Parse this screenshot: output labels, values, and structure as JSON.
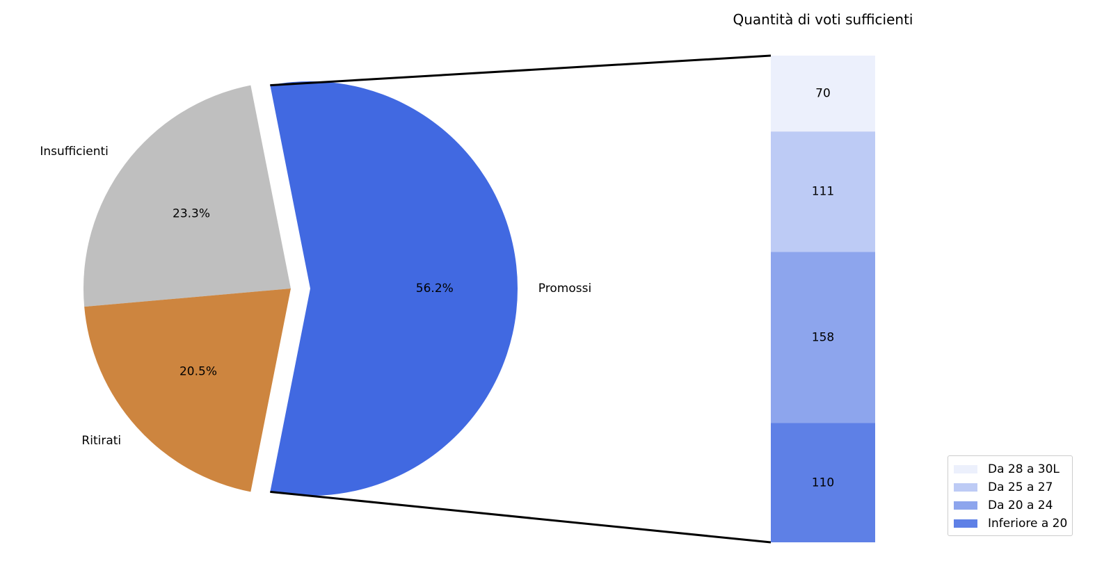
{
  "chart_data": [
    {
      "type": "pie",
      "slices": [
        {
          "label": "Promossi",
          "value": 56.2,
          "pct_label": "56.2%",
          "color": "#4169e1",
          "exploded": true
        },
        {
          "label": "Insufficienti",
          "value": 23.3,
          "pct_label": "23.3%",
          "color": "#bfbfbf",
          "exploded": false
        },
        {
          "label": "Ritirati",
          "value": 20.5,
          "pct_label": "20.5%",
          "color": "#cd853f",
          "exploded": false
        }
      ]
    },
    {
      "type": "bar",
      "stacked": true,
      "title": "Quantità di voti sufficienti",
      "series": [
        {
          "name": "Inferiore a 20",
          "value": 110,
          "label": "110",
          "color": "#4169e1",
          "alpha": 0.85
        },
        {
          "name": "Da 20 a 24",
          "value": 158,
          "label": "158",
          "color": "#4169e1",
          "alpha": 0.6
        },
        {
          "name": "Da 25 a 27",
          "value": 111,
          "label": "111",
          "color": "#4169e1",
          "alpha": 0.35
        },
        {
          "name": "Da 28 a 30L",
          "value": 70,
          "label": "70",
          "color": "#4169e1",
          "alpha": 0.1
        }
      ],
      "legend_position": "bottom-right",
      "connects_to": "Promossi"
    }
  ]
}
